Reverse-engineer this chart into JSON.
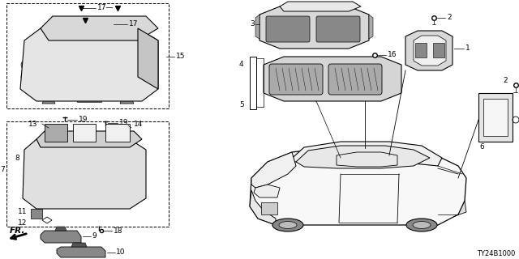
{
  "background_color": "#ffffff",
  "diagram_code": "TY24B1000",
  "label_fontsize": 6.5,
  "diagram_code_fontsize": 6,
  "fig_width": 6.4,
  "fig_height": 3.2,
  "dpi": 100
}
